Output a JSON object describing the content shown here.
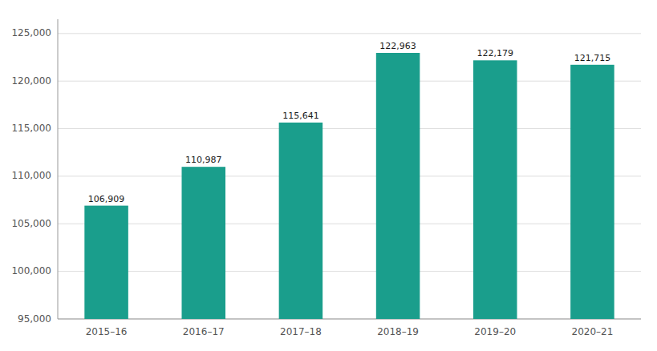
{
  "chart_data": {
    "type": "bar",
    "categories": [
      "2015–16",
      "2016–17",
      "2017–18",
      "2018–19",
      "2019–20",
      "2020–21"
    ],
    "values": [
      106909,
      110987,
      115641,
      122963,
      122179,
      121715
    ],
    "value_labels": [
      "106,909",
      "110,987",
      "115,641",
      "122,963",
      "122,179",
      "121,715"
    ],
    "color": "#1a9e8c",
    "ylim": [
      95000,
      126500
    ],
    "yticks": [
      {
        "value": 95000,
        "label": "95,000"
      },
      {
        "value": 100000,
        "label": "100,000"
      },
      {
        "value": 105000,
        "label": "105,000"
      },
      {
        "value": 110000,
        "label": "110,000"
      },
      {
        "value": 115000,
        "label": "115,000"
      },
      {
        "value": 120000,
        "label": "120,000"
      },
      {
        "value": 125000,
        "label": "125,000"
      }
    ],
    "grid": true,
    "data_labels": true
  }
}
